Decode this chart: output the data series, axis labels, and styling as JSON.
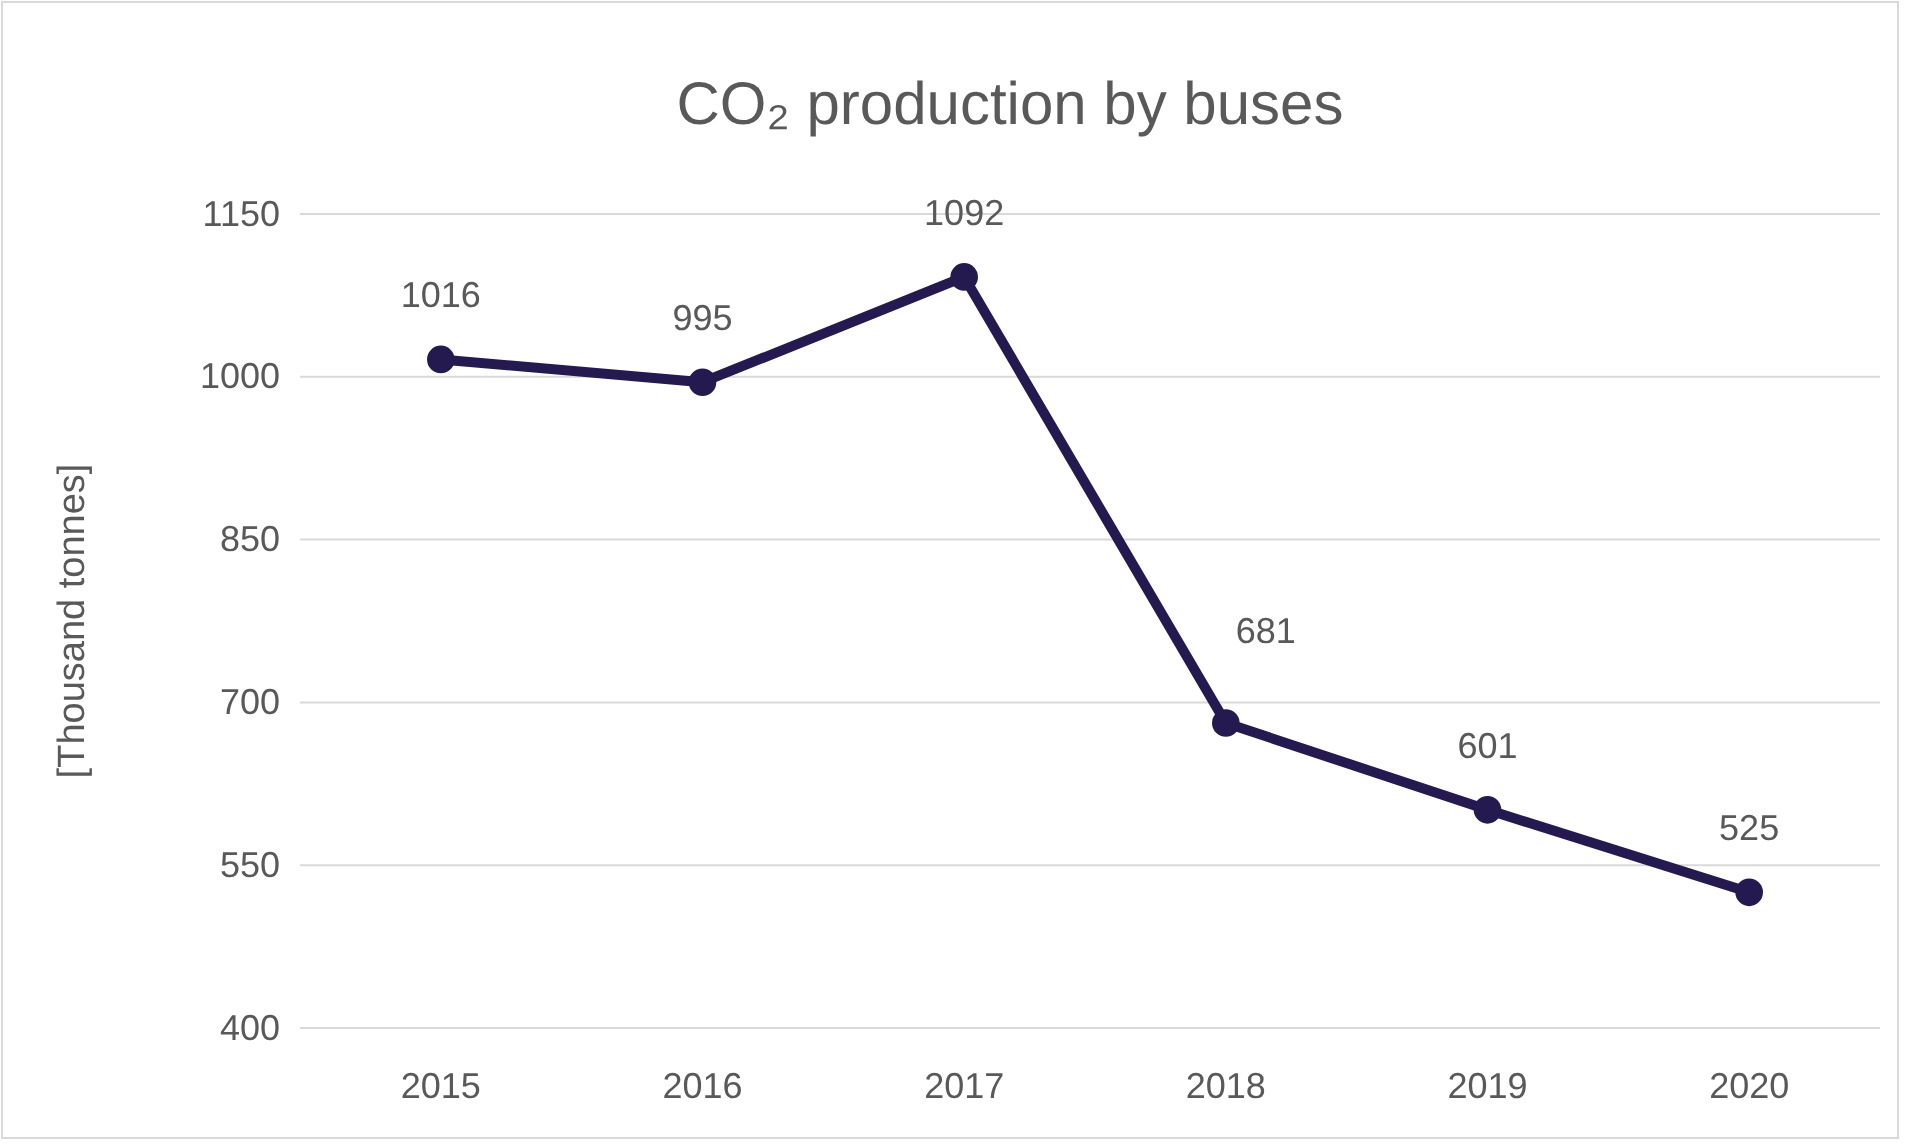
{
  "chart_data": {
    "type": "line",
    "title": "CO₂ production by buses",
    "ylabel": "[Thousand tonnes]",
    "categories": [
      "2015",
      "2016",
      "2017",
      "2018",
      "2019",
      "2020"
    ],
    "series": [
      {
        "color": "#241a4f",
        "values": [
          1016,
          995,
          1092,
          681,
          601,
          525
        ]
      }
    ],
    "ylim": [
      400,
      1150
    ],
    "yticks": [
      400,
      550,
      700,
      850,
      1000,
      1150
    ],
    "grid": "y",
    "marker": "circle",
    "line_style": "solid",
    "data_labels": true
  }
}
